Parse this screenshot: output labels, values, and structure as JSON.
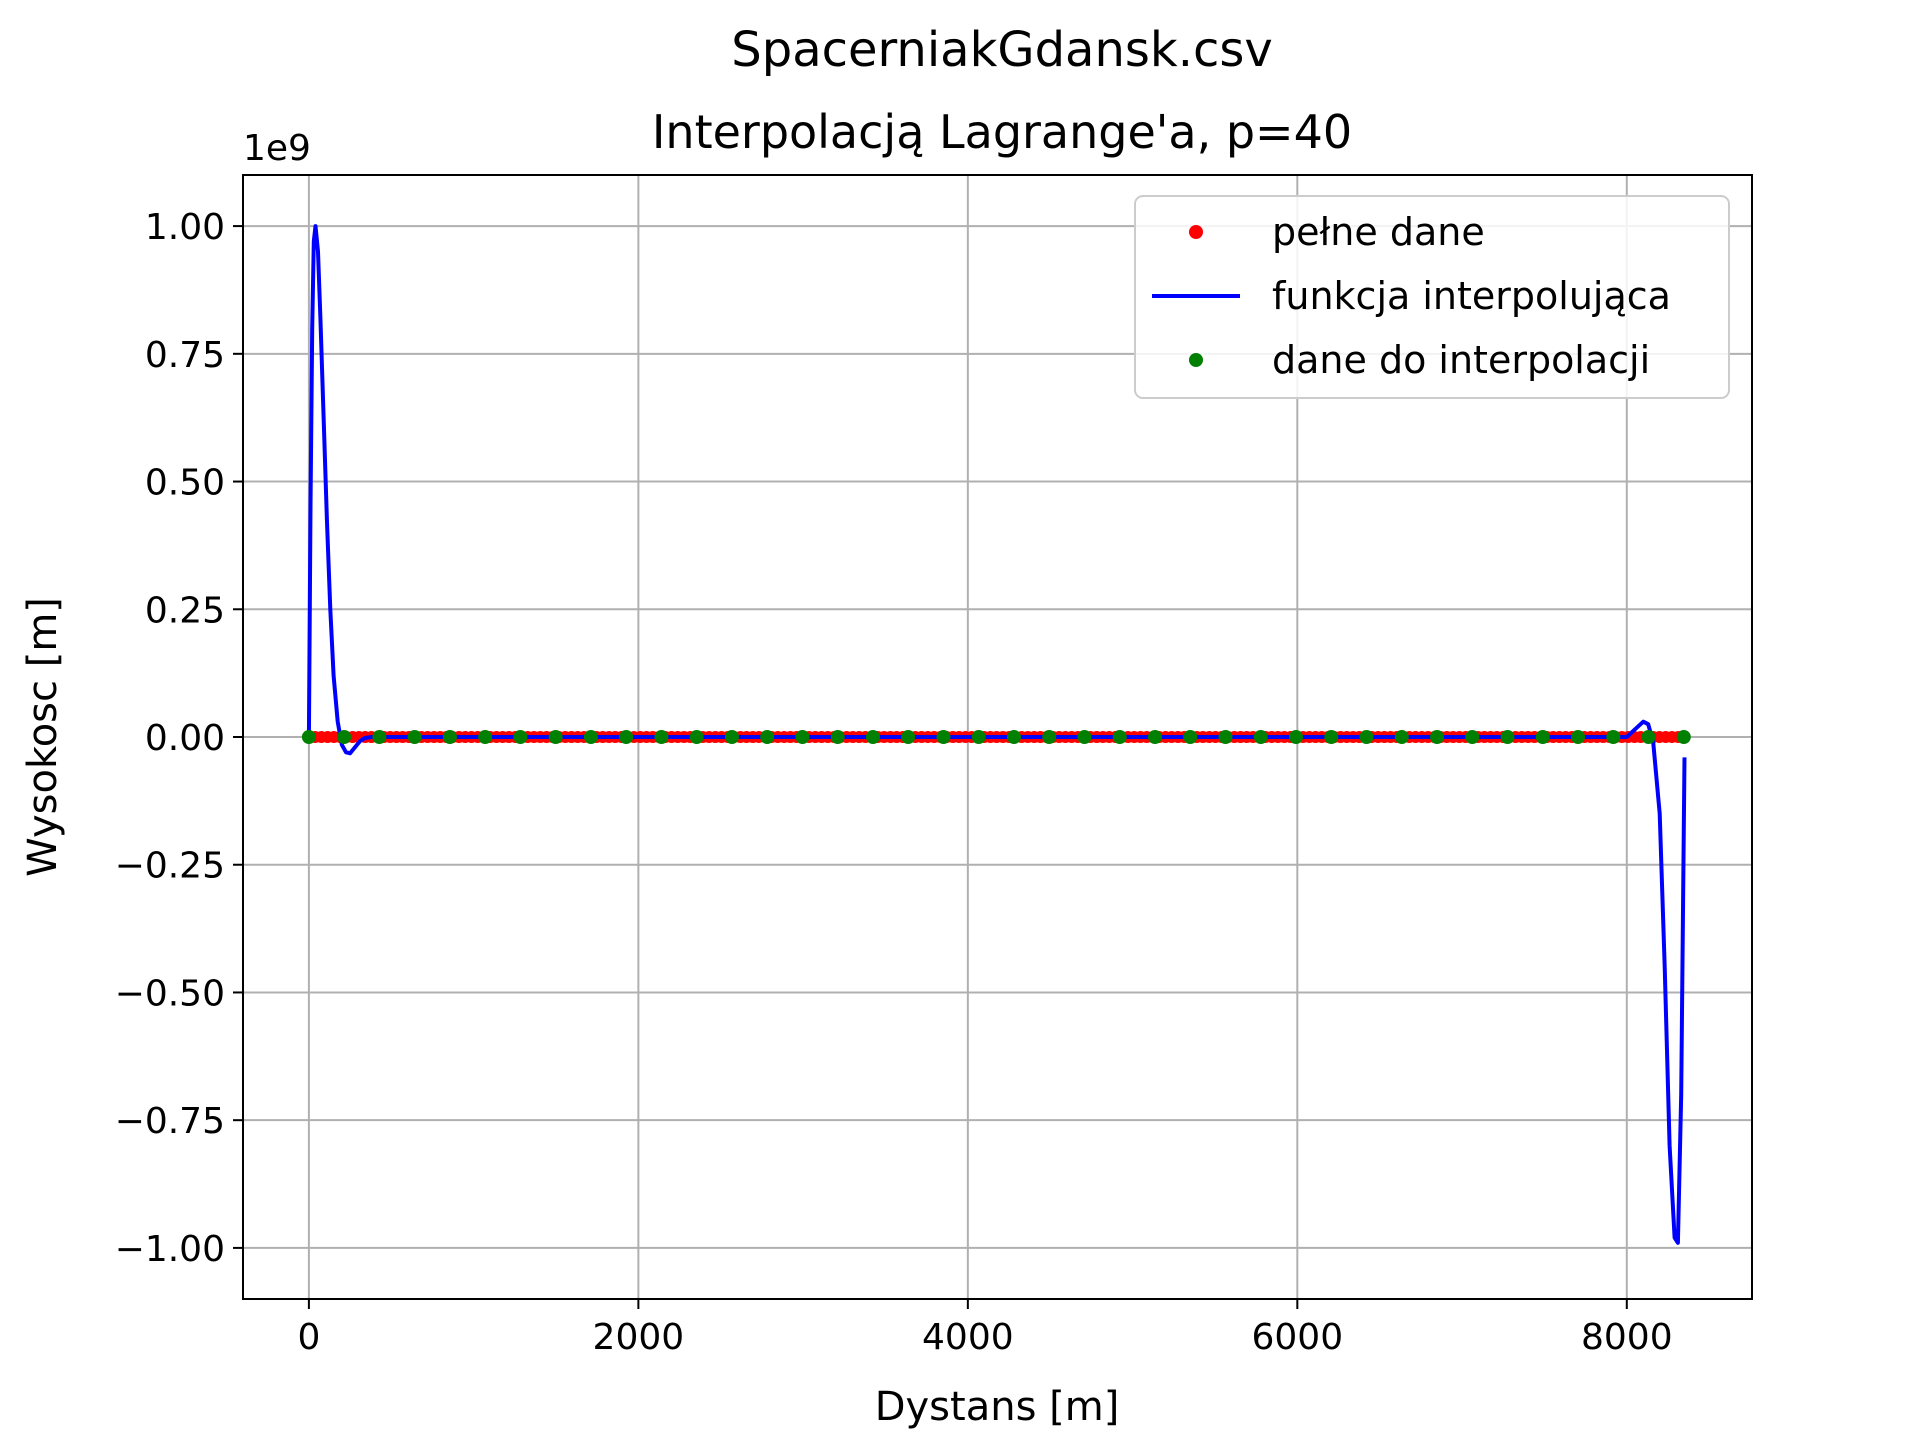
{
  "chart_data": {
    "type": "line",
    "suptitle": "SpacerniakGdansk.csv",
    "title": "Interpolacją Lagrange'a, p=40",
    "xlabel": "Dystans [m]",
    "ylabel": "Wysokosc [m]",
    "y_offset_label": "1e9",
    "y_scale_factor": 1000000000,
    "xlim": [
      -400,
      8760
    ],
    "ylim": [
      -1.1,
      1.1
    ],
    "x_ticks": [
      0,
      2000,
      4000,
      6000,
      8000
    ],
    "x_tick_labels": [
      "0",
      "2000",
      "4000",
      "6000",
      "8000"
    ],
    "y_ticks": [
      -1.0,
      -0.75,
      -0.5,
      -0.25,
      0.0,
      0.25,
      0.5,
      0.75,
      1.0
    ],
    "y_tick_labels": [
      "−1.00",
      "−0.75",
      "−0.50",
      "−0.25",
      "0.00",
      "0.25",
      "0.50",
      "0.75",
      "1.00"
    ],
    "grid": true,
    "legend_position": "top-right",
    "series": [
      {
        "name": "pełne dane",
        "kind": "markers",
        "color": "#ff0000",
        "x_range": [
          0,
          8350
        ],
        "y_value": 0.0
      },
      {
        "name": "funkcja interpolująca",
        "kind": "line",
        "color": "#0000ff",
        "x": [
          0,
          10,
          20,
          30,
          40,
          55,
          70,
          90,
          110,
          130,
          150,
          175,
          200,
          225,
          250,
          280,
          310,
          340,
          380,
          430,
          500,
          8000,
          8050,
          8100,
          8130,
          8160,
          8200,
          8230,
          8260,
          8290,
          8310,
          8330,
          8350
        ],
        "y": [
          0.0,
          0.45,
          0.8,
          0.97,
          1.0,
          0.95,
          0.82,
          0.62,
          0.42,
          0.25,
          0.12,
          0.03,
          -0.015,
          -0.03,
          -0.032,
          -0.02,
          -0.008,
          -0.002,
          0.0,
          0.0,
          0.0,
          0.0,
          0.015,
          0.03,
          0.025,
          -0.01,
          -0.15,
          -0.45,
          -0.8,
          -0.98,
          -0.99,
          -0.7,
          -0.04
        ]
      },
      {
        "name": "dane do interpolacji",
        "kind": "markers",
        "color": "#008000",
        "x": [
          0,
          214,
          428,
          642,
          856,
          1070,
          1284,
          1498,
          1712,
          1926,
          2140,
          2354,
          2568,
          2782,
          2996,
          3210,
          3424,
          3638,
          3852,
          4066,
          4280,
          4494,
          4708,
          4922,
          5136,
          5350,
          5564,
          5778,
          5992,
          6206,
          6420,
          6634,
          6848,
          7062,
          7276,
          7490,
          7704,
          7918,
          8132,
          8346
        ],
        "y_value": 0.0
      }
    ]
  }
}
